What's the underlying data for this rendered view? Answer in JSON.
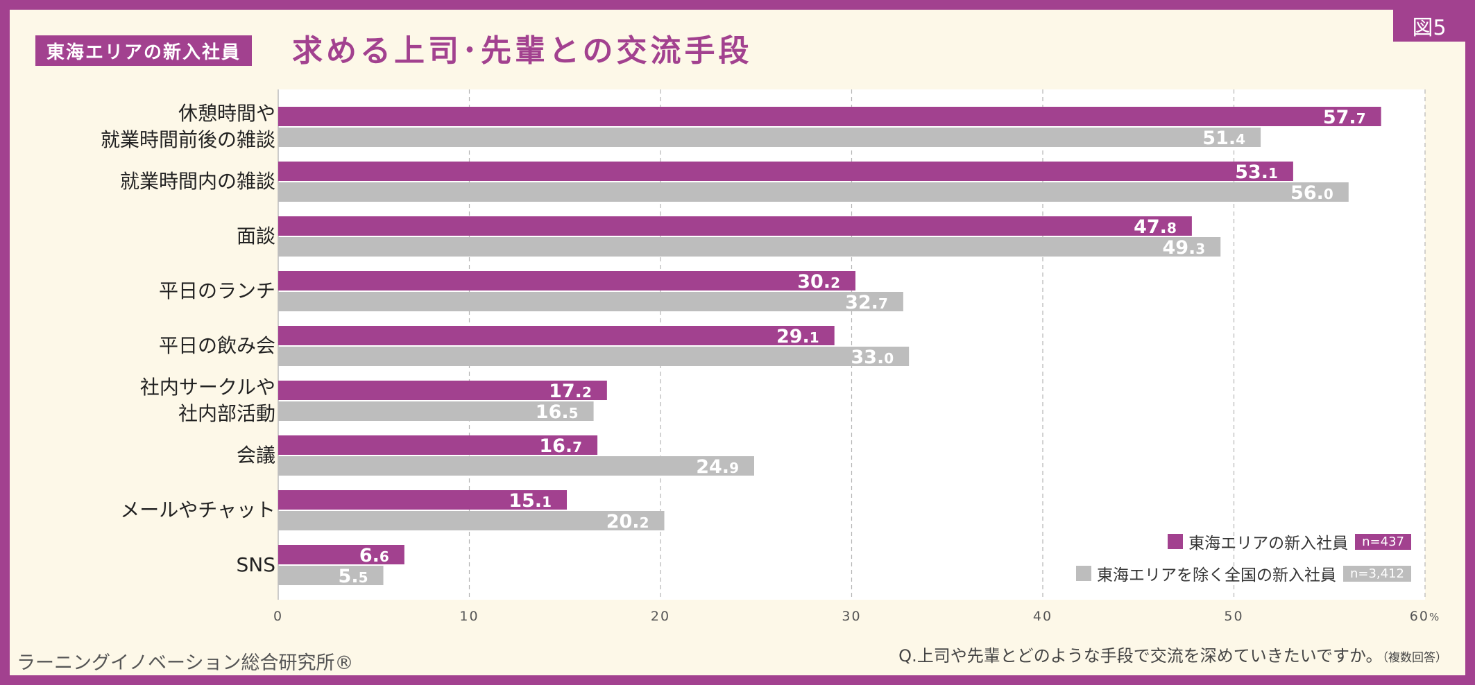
{
  "figure_no": "図5",
  "title_tag": "東海エリアの新入社員",
  "title": "求める上司･先輩との交流手段",
  "source": "ラーニングイノベーション総合研究所®",
  "question": "Q.上司や先輩とどのような手段で交流を深めていきたいですか。",
  "question_note": "（複数回答）",
  "colors": {
    "accent": "#a2418f",
    "gray": "#bdbdbd",
    "background": "#fdf8e8"
  },
  "chart_data": {
    "type": "bar",
    "orientation": "horizontal",
    "categories": [
      "休憩時間や\n就業時間前後の雑談",
      "就業時間内の雑談",
      "面談",
      "平日のランチ",
      "平日の飲み会",
      "社内サークルや\n社内部活動",
      "会議",
      "メールやチャット",
      "SNS"
    ],
    "series": [
      {
        "name": "東海エリアの新入社員",
        "n": "n=437",
        "color": "#a2418f",
        "values": [
          57.7,
          53.1,
          47.8,
          30.2,
          29.1,
          17.2,
          16.7,
          15.1,
          6.6
        ]
      },
      {
        "name": "東海エリアを除く全国の新入社員",
        "n": "n=3,412",
        "color": "#bdbdbd",
        "values": [
          51.4,
          56.0,
          49.3,
          32.7,
          33.0,
          16.5,
          24.9,
          20.2,
          5.5
        ]
      }
    ],
    "xlim": [
      0,
      60
    ],
    "xticks": [
      "0",
      "10",
      "20",
      "30",
      "40",
      "50",
      "60"
    ],
    "xunit": "%",
    "grid": true,
    "legend_position": "bottom-right"
  }
}
